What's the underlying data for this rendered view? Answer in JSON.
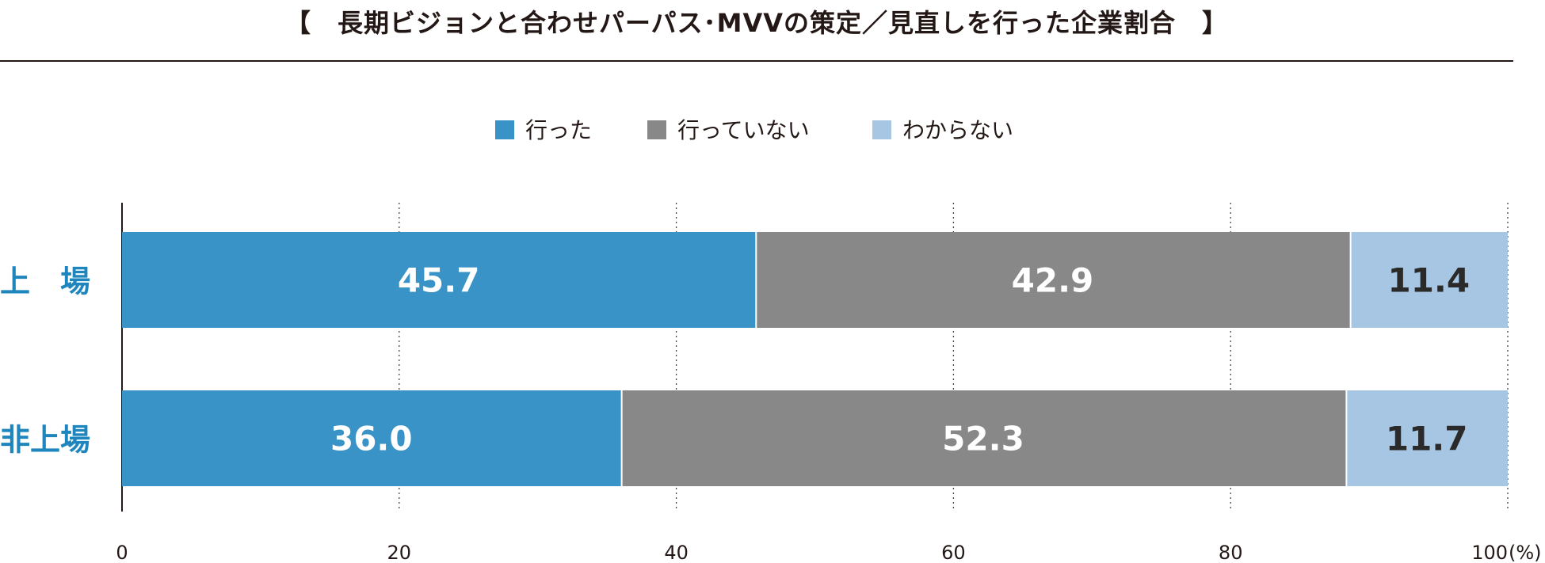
{
  "chart_data": {
    "type": "bar",
    "orientation": "horizontal",
    "stacked": true,
    "title": "【　長期ビジョンと合わせパーパス･MVVの策定／見直しを行った企業割合　】",
    "categories": [
      "上　場",
      "非上場"
    ],
    "series": [
      {
        "name": "行った",
        "color": "#3993c6",
        "label_color": "#ffffff",
        "values": [
          45.7,
          36.0
        ]
      },
      {
        "name": "行っていない",
        "color": "#888888",
        "label_color": "#ffffff",
        "values": [
          42.9,
          52.3
        ]
      },
      {
        "name": "わからない",
        "color": "#a7c6e3",
        "label_color": "#2a2a2a",
        "values": [
          11.4,
          11.7
        ]
      }
    ],
    "data_labels": [
      [
        "45.7",
        "42.9",
        "11.4"
      ],
      [
        "36.0",
        "52.3",
        "11.7"
      ]
    ],
    "xlim": [
      0,
      100
    ],
    "xticks": [
      0,
      20,
      40,
      60,
      80,
      100
    ],
    "xtick_labels": [
      "0",
      "20",
      "40",
      "60",
      "80",
      "100"
    ],
    "x_unit": "(%)",
    "category_label_color": "#1e86bc",
    "grid": "vertical dotted",
    "legend_position": "top-center"
  }
}
